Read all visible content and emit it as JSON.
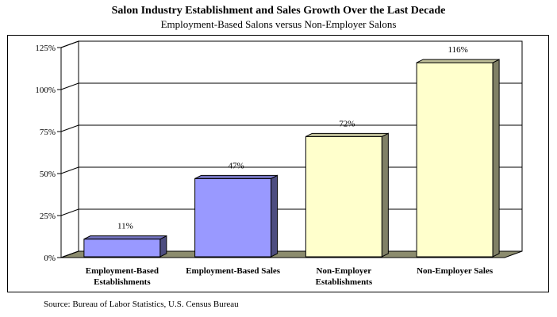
{
  "title": "Salon Industry Establishment and Sales Growth Over the Last Decade",
  "subtitle": "Employment-Based Salons versus Non-Employer Salons",
  "source": "Source: Bureau of Labor Statistics, U.S. Census Bureau",
  "colors": {
    "blue_bar": "#9999ff",
    "yellow_bar": "#ffffcc",
    "floor": "#8c8c6e"
  },
  "chart_data": {
    "type": "bar",
    "title": "Salon Industry Establishment and Sales Growth Over the Last Decade",
    "subtitle": "Employment-Based Salons versus Non-Employer Salons",
    "categories": [
      [
        "Employment-Based",
        "Establishments"
      ],
      [
        "Employment-Based Sales"
      ],
      [
        "Non-Employer",
        "Establishments"
      ],
      [
        "Non-Employer Sales"
      ]
    ],
    "values": [
      11,
      47,
      72,
      116
    ],
    "data_labels": [
      "11%",
      "47%",
      "72%",
      "116%"
    ],
    "bar_colors": [
      "#9999ff",
      "#9999ff",
      "#ffffcc",
      "#ffffcc"
    ],
    "ylim": [
      0,
      125
    ],
    "yticks": [
      0,
      25,
      50,
      75,
      100,
      125
    ],
    "ytick_labels": [
      "0%",
      "25%",
      "50%",
      "75%",
      "100%",
      "125%"
    ],
    "grid": true,
    "style": "3d"
  }
}
